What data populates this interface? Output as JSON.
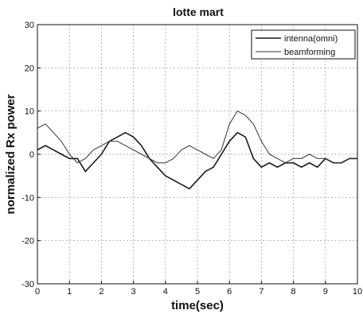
{
  "chart_data": {
    "type": "line",
    "title": "lotte mart",
    "xlabel": "time(sec)",
    "ylabel": "normalized Rx power",
    "xlim": [
      0,
      10
    ],
    "ylim": [
      -30,
      30
    ],
    "xticks": [
      0,
      1,
      2,
      3,
      4,
      5,
      6,
      7,
      8,
      9,
      10
    ],
    "yticks": [
      -30,
      -20,
      -10,
      0,
      10,
      20,
      30
    ],
    "grid": true,
    "legend_position": "top-right",
    "colors": {
      "omni": "#1a1a1a",
      "beamforming": "#333333"
    },
    "x": [
      0,
      0.25,
      0.5,
      0.75,
      1,
      1.25,
      1.5,
      1.75,
      2,
      2.25,
      2.5,
      2.75,
      3,
      3.25,
      3.5,
      3.75,
      4,
      4.25,
      4.5,
      4.75,
      5,
      5.25,
      5.5,
      5.75,
      6,
      6.25,
      6.5,
      6.75,
      7,
      7.25,
      7.5,
      7.75,
      8,
      8.25,
      8.5,
      8.75,
      9,
      9.25,
      9.5,
      9.75,
      10
    ],
    "series": [
      {
        "name": "intenna(omni)",
        "values": [
          1,
          2,
          1,
          0,
          -1,
          -1,
          -4,
          -2,
          0,
          3,
          4,
          5,
          4,
          2,
          -1,
          -3,
          -5,
          -6,
          -7,
          -8,
          -6,
          -4,
          -3,
          0,
          3,
          5,
          4,
          -1,
          -3,
          -2,
          -3,
          -2,
          -2,
          -3,
          -2,
          -3,
          -1,
          -2,
          -2,
          -1,
          -1
        ]
      },
      {
        "name": "beamforming",
        "values": [
          6,
          7,
          5,
          3,
          0,
          -2,
          -1,
          1,
          2,
          3,
          3,
          2,
          1,
          0,
          -1,
          -2,
          -2,
          -1,
          1,
          2,
          1,
          0,
          -1,
          1,
          7,
          10,
          9,
          7,
          3,
          0,
          -1,
          -2,
          -1,
          -1,
          0,
          -1,
          -1,
          -2,
          -2,
          -1,
          -1
        ]
      }
    ]
  }
}
